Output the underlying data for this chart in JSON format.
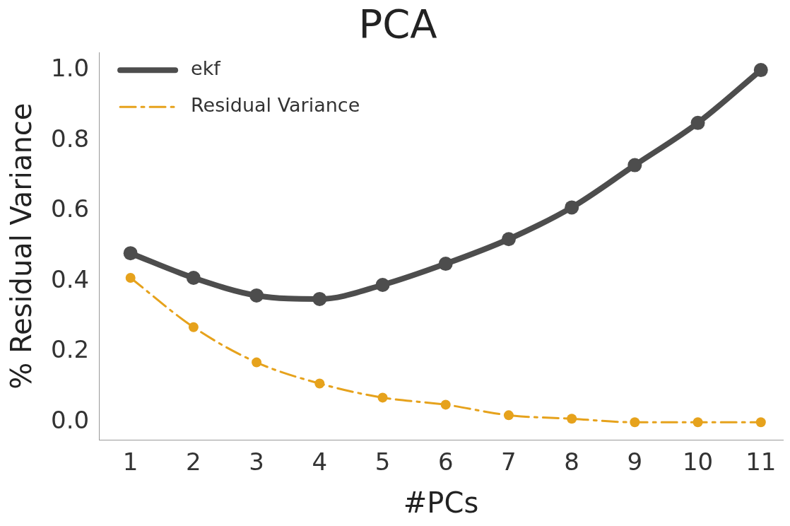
{
  "chart_data": {
    "type": "line",
    "title": "PCA",
    "xlabel": "#PCs",
    "ylabel": "% Residual Variance",
    "x": [
      1,
      2,
      3,
      4,
      5,
      6,
      7,
      8,
      9,
      10,
      11
    ],
    "xlim": [
      0.5,
      11.35
    ],
    "xticks": [
      1,
      2,
      3,
      4,
      5,
      6,
      7,
      8,
      9,
      10,
      11
    ],
    "ylim": [
      -0.05,
      1.05
    ],
    "yticks": [
      {
        "value": 0,
        "label": "0.0"
      },
      {
        "value": 0.2,
        "label": "0.2"
      },
      {
        "value": 0.4,
        "label": "0.4"
      },
      {
        "value": 0.6,
        "label": "0.6"
      },
      {
        "value": 0.8,
        "label": "0.8"
      },
      {
        "value": 1,
        "label": "1.0"
      }
    ],
    "grid": false,
    "legend": "top left",
    "marker": "circle",
    "series": [
      {
        "name": "ekf",
        "color": "#4d4d4d",
        "line_style": "solid",
        "values": [
          0.48,
          0.41,
          0.36,
          0.35,
          0.39,
          0.45,
          0.52,
          0.61,
          0.73,
          0.85,
          1.0
        ]
      },
      {
        "name": "Residual Variance",
        "color": "#e6a21c",
        "line_style": "dashed",
        "values": [
          0.41,
          0.27,
          0.17,
          0.11,
          0.07,
          0.05,
          0.02,
          0.01,
          0.0,
          0.0,
          0.0
        ]
      }
    ]
  }
}
